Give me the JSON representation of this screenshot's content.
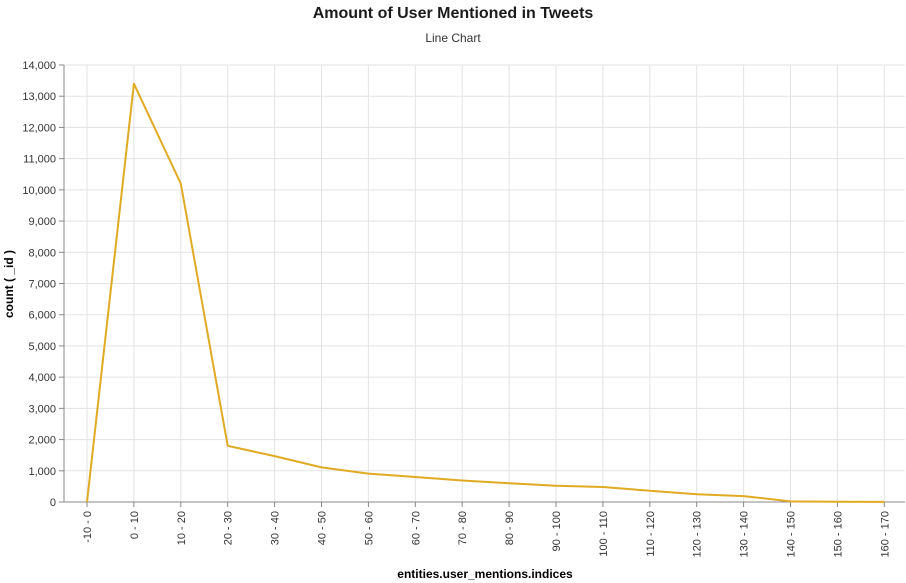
{
  "chart_data": {
    "type": "line",
    "title": "Amount of User Mentioned in Tweets",
    "subtitle": "Line Chart",
    "xlabel": "entities.user_mentions.indices",
    "ylabel": "count ( _id )",
    "categories": [
      "-10 - 0",
      "0 - 10",
      "10 - 20",
      "20 - 30",
      "30 - 40",
      "40 - 50",
      "50 - 60",
      "60 - 70",
      "70 - 80",
      "80 - 90",
      "90 - 100",
      "100 - 110",
      "110 - 120",
      "120 - 130",
      "130 - 140",
      "140 - 150",
      "150 - 160",
      "160 - 170"
    ],
    "series": [
      {
        "values": [
          0,
          13400,
          10200,
          1800,
          1470,
          1110,
          910,
          800,
          690,
          600,
          520,
          480,
          360,
          250,
          190,
          20,
          10,
          5
        ]
      }
    ],
    "ylim": [
      0,
      14000
    ],
    "yticks": [
      0,
      1000,
      2000,
      3000,
      4000,
      5000,
      6000,
      7000,
      8000,
      9000,
      10000,
      11000,
      12000,
      13000,
      14000
    ],
    "ytick_labels": [
      "0",
      "1,000",
      "2,000",
      "3,000",
      "4,000",
      "5,000",
      "6,000",
      "7,000",
      "8,000",
      "9,000",
      "10,000",
      "11,000",
      "12,000",
      "13,000",
      "14,000"
    ],
    "grid": true,
    "line_color": "#e0aa22",
    "grid_color": "#e3e3e3"
  }
}
